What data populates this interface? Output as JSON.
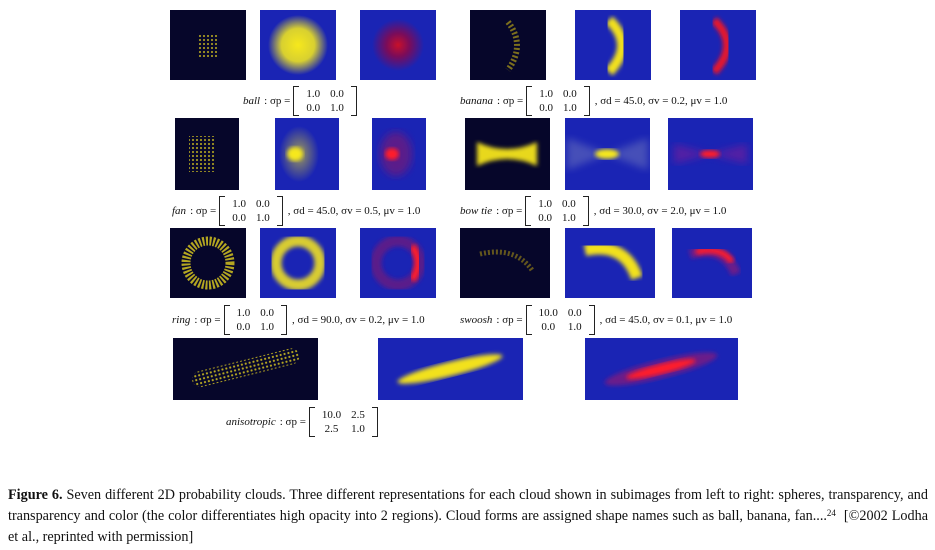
{
  "figure": {
    "label": "Figure 6.",
    "caption_text": " Seven different 2D probability clouds. Three different representations for each cloud shown in subimages from left to right: spheres, transparency, and transparency and color (the color differentiates high opacity into 2 regions). Cloud forms are assigned shape names such as ball, banana, fan....",
    "citation_sup": "24",
    "credit": "[©2002 Lodha et al., reprinted with permission]"
  },
  "colors": {
    "background": "#06062a",
    "blue": "#1a24b4",
    "yellow": "#f2e11e",
    "red": "#e8122a"
  },
  "clouds": [
    {
      "name": "ball",
      "sigma_p_label": "σp =",
      "matrix": [
        [
          "1.0",
          "0.0"
        ],
        [
          "0.0",
          "1.0"
        ]
      ],
      "params": ""
    },
    {
      "name": "banana",
      "sigma_p_label": "σp =",
      "matrix": [
        [
          "1.0",
          "0.0"
        ],
        [
          "0.0",
          "1.0"
        ]
      ],
      "params": ", σd = 45.0, σv = 0.2, μv = 1.0"
    },
    {
      "name": "fan",
      "sigma_p_label": "σp =",
      "matrix": [
        [
          "1.0",
          "0.0"
        ],
        [
          "0.0",
          "1.0"
        ]
      ],
      "params": ", σd = 45.0, σv = 0.5, μv = 1.0"
    },
    {
      "name": "bow tie",
      "sigma_p_label": "σp =",
      "matrix": [
        [
          "1.0",
          "0.0"
        ],
        [
          "0.0",
          "1.0"
        ]
      ],
      "params": ", σd = 30.0, σv = 2.0, μv = 1.0"
    },
    {
      "name": "ring",
      "sigma_p_label": "σp =",
      "matrix": [
        [
          "1.0",
          "0.0"
        ],
        [
          "0.0",
          "1.0"
        ]
      ],
      "params": ", σd = 90.0, σv = 0.2, μv = 1.0"
    },
    {
      "name": "swoosh",
      "sigma_p_label": "σp =",
      "matrix": [
        [
          "10.0",
          "0.0"
        ],
        [
          "0.0",
          "1.0"
        ]
      ],
      "params": ", σd = 45.0, σv = 0.1, μv = 1.0"
    },
    {
      "name": "anisotropic",
      "sigma_p_label": "σp =",
      "matrix": [
        [
          "10.0",
          "2.5"
        ],
        [
          "2.5",
          "1.0"
        ]
      ],
      "params": ""
    }
  ]
}
